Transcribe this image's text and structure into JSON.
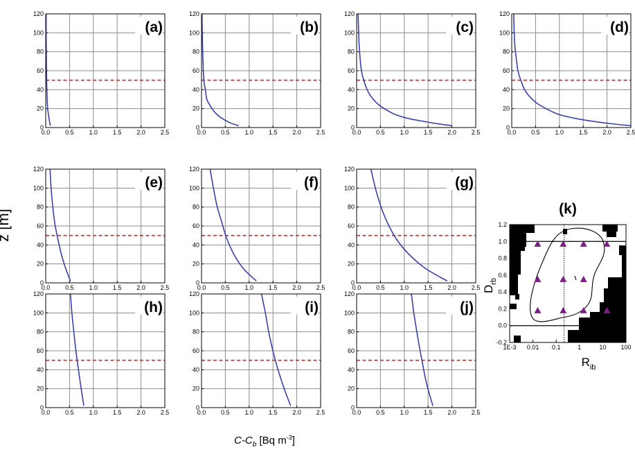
{
  "figure": {
    "ylabel": "z [m]",
    "xlabel_parts": [
      "C-C",
      "b",
      " [Bq m",
      "-3",
      "]"
    ]
  },
  "chart_data": [
    {
      "panel": "(a)",
      "type": "line",
      "xlim": [
        0,
        2.5
      ],
      "ylim": [
        0,
        120
      ],
      "xticks": [
        "0.0",
        "0.5",
        "1.0",
        "1.5",
        "2.0",
        "2.5"
      ],
      "yticks": [
        "0",
        "20",
        "40",
        "60",
        "80",
        "100",
        "120"
      ],
      "x": [
        0.1,
        0.085,
        0.07,
        0.055,
        0.04,
        0.03,
        0.025,
        0.02,
        0.015,
        0.01,
        0.008
      ],
      "y": [
        2,
        5,
        10,
        15,
        20,
        30,
        40,
        50,
        70,
        90,
        120
      ],
      "reference_line_y": 50
    },
    {
      "panel": "(b)",
      "type": "line",
      "xlim": [
        0,
        2.5
      ],
      "ylim": [
        0,
        120
      ],
      "xticks": [
        "0.0",
        "0.5",
        "1.0",
        "1.5",
        "2.0",
        "2.5"
      ],
      "yticks": [
        "0",
        "20",
        "40",
        "60",
        "80",
        "100",
        "120"
      ],
      "x": [
        0.78,
        0.6,
        0.42,
        0.3,
        0.22,
        0.16,
        0.11,
        0.08,
        0.05,
        0.03,
        0.02,
        0.01
      ],
      "y": [
        2,
        5,
        10,
        15,
        20,
        25,
        30,
        40,
        50,
        70,
        90,
        120
      ],
      "reference_line_y": 50
    },
    {
      "panel": "(c)",
      "type": "line",
      "xlim": [
        0,
        2.5
      ],
      "ylim": [
        0,
        120
      ],
      "xticks": [
        "0.0",
        "0.5",
        "1.0",
        "1.5",
        "2.0",
        "2.5"
      ],
      "yticks": [
        "0",
        "20",
        "40",
        "60",
        "80",
        "100",
        "120"
      ],
      "x": [
        2.0,
        1.7,
        1.35,
        1.05,
        0.8,
        0.58,
        0.42,
        0.3,
        0.22,
        0.15,
        0.1,
        0.07,
        0.05,
        0.03
      ],
      "y": [
        2,
        4,
        7,
        10,
        14,
        20,
        26,
        33,
        40,
        50,
        60,
        75,
        90,
        120
      ],
      "reference_line_y": 50
    },
    {
      "panel": "(d)",
      "type": "line",
      "xlim": [
        0,
        2.5
      ],
      "ylim": [
        0,
        120
      ],
      "xticks": [
        "0.0",
        "0.5",
        "1.0",
        "1.5",
        "2.0",
        "2.5"
      ],
      "yticks": [
        "0",
        "20",
        "40",
        "60",
        "80",
        "100",
        "120"
      ],
      "x": [
        2.5,
        2.1,
        1.65,
        1.3,
        0.98,
        0.72,
        0.52,
        0.37,
        0.27,
        0.19,
        0.13,
        0.09,
        0.06,
        0.04
      ],
      "y": [
        2,
        4,
        7,
        10,
        14,
        20,
        26,
        33,
        40,
        50,
        60,
        75,
        90,
        120
      ],
      "reference_line_y": 50
    },
    {
      "panel": "(e)",
      "type": "line",
      "xlim": [
        0,
        2.5
      ],
      "ylim": [
        0,
        120
      ],
      "xticks": [
        "0.0",
        "0.5",
        "1.0",
        "1.5",
        "2.0",
        "2.5"
      ],
      "yticks": [
        "0",
        "20",
        "40",
        "60",
        "80",
        "100",
        "120"
      ],
      "x": [
        0.52,
        0.42,
        0.33,
        0.26,
        0.2,
        0.16,
        0.12,
        0.09
      ],
      "y": [
        2,
        15,
        30,
        45,
        60,
        75,
        95,
        120
      ],
      "reference_line_y": 50
    },
    {
      "panel": "(f)",
      "type": "line",
      "xlim": [
        0,
        2.5
      ],
      "ylim": [
        0,
        120
      ],
      "xticks": [
        "0.0",
        "0.5",
        "1.0",
        "1.5",
        "2.0",
        "2.5"
      ],
      "yticks": [
        "0",
        "20",
        "40",
        "60",
        "80",
        "100",
        "120"
      ],
      "x": [
        1.15,
        0.88,
        0.68,
        0.52,
        0.42,
        0.33,
        0.25,
        0.18
      ],
      "y": [
        2,
        15,
        30,
        48,
        65,
        80,
        100,
        120
      ],
      "reference_line_y": 50
    },
    {
      "panel": "(g)",
      "type": "line",
      "xlim": [
        0,
        2.5
      ],
      "ylim": [
        0,
        120
      ],
      "xticks": [
        "0.0",
        "0.5",
        "1.0",
        "1.5",
        "2.0",
        "2.5"
      ],
      "yticks": [
        "0",
        "20",
        "40",
        "60",
        "80",
        "100",
        "120"
      ],
      "x": [
        1.9,
        1.45,
        1.1,
        0.85,
        0.68,
        0.55,
        0.42,
        0.3
      ],
      "y": [
        2,
        15,
        30,
        45,
        60,
        75,
        95,
        120
      ],
      "reference_line_y": 50
    },
    {
      "panel": "(h)",
      "type": "line",
      "xlim": [
        0,
        2.5
      ],
      "ylim": [
        0,
        120
      ],
      "xticks": [
        "0.0",
        "0.5",
        "1.0",
        "1.5",
        "2.0",
        "2.5"
      ],
      "yticks": [
        "0",
        "20",
        "40",
        "60",
        "80",
        "100",
        "120"
      ],
      "x": [
        0.8,
        0.73,
        0.66,
        0.6,
        0.55,
        0.52
      ],
      "y": [
        2,
        25,
        50,
        75,
        100,
        120
      ],
      "reference_line_y": 50
    },
    {
      "panel": "(i)",
      "type": "line",
      "xlim": [
        0,
        2.5
      ],
      "ylim": [
        0,
        120
      ],
      "xticks": [
        "0.0",
        "0.5",
        "1.0",
        "1.5",
        "2.0",
        "2.5"
      ],
      "yticks": [
        "0",
        "20",
        "40",
        "60",
        "80",
        "100",
        "120"
      ],
      "x": [
        1.87,
        1.7,
        1.55,
        1.43,
        1.34,
        1.26
      ],
      "y": [
        2,
        25,
        50,
        75,
        100,
        120
      ],
      "reference_line_y": 50
    },
    {
      "panel": "(j)",
      "type": "line",
      "xlim": [
        0,
        2.5
      ],
      "ylim": [
        0,
        120
      ],
      "xticks": [
        "0.0",
        "0.5",
        "1.0",
        "1.5",
        "2.0",
        "2.5"
      ],
      "yticks": [
        "0",
        "20",
        "40",
        "60",
        "80",
        "100",
        "120"
      ],
      "x": [
        1.6,
        1.47,
        1.37,
        1.28,
        1.2,
        1.15
      ],
      "y": [
        2,
        25,
        50,
        75,
        100,
        120
      ],
      "reference_line_y": 50
    },
    {
      "panel": "(k)",
      "type": "scatter",
      "x_scale": "log",
      "xlim": [
        0.001,
        100
      ],
      "ylim": [
        -0.2,
        1.2
      ],
      "xticks": [
        "1E-3",
        "0.01",
        "0.1",
        "1",
        "10",
        "100"
      ],
      "yticks": [
        "-0.2",
        "0.0",
        "0.2",
        "0.4",
        "0.6",
        "0.8",
        "1.0",
        "1.2"
      ],
      "xlabel": "R",
      "xlabel_sub": "ib",
      "ylabel": "D",
      "ylabel_sub": "rb",
      "hlines": [
        0.0,
        1.0
      ],
      "vline_dotted": 0.22,
      "points_x": [
        0.016,
        0.2,
        1.5,
        15,
        0.016,
        0.2,
        1.5,
        0.016,
        0.2,
        1.5,
        15
      ],
      "points_y": [
        0.97,
        0.97,
        0.97,
        0.97,
        0.55,
        0.55,
        0.55,
        0.18,
        0.18,
        0.18,
        0.18
      ]
    }
  ]
}
